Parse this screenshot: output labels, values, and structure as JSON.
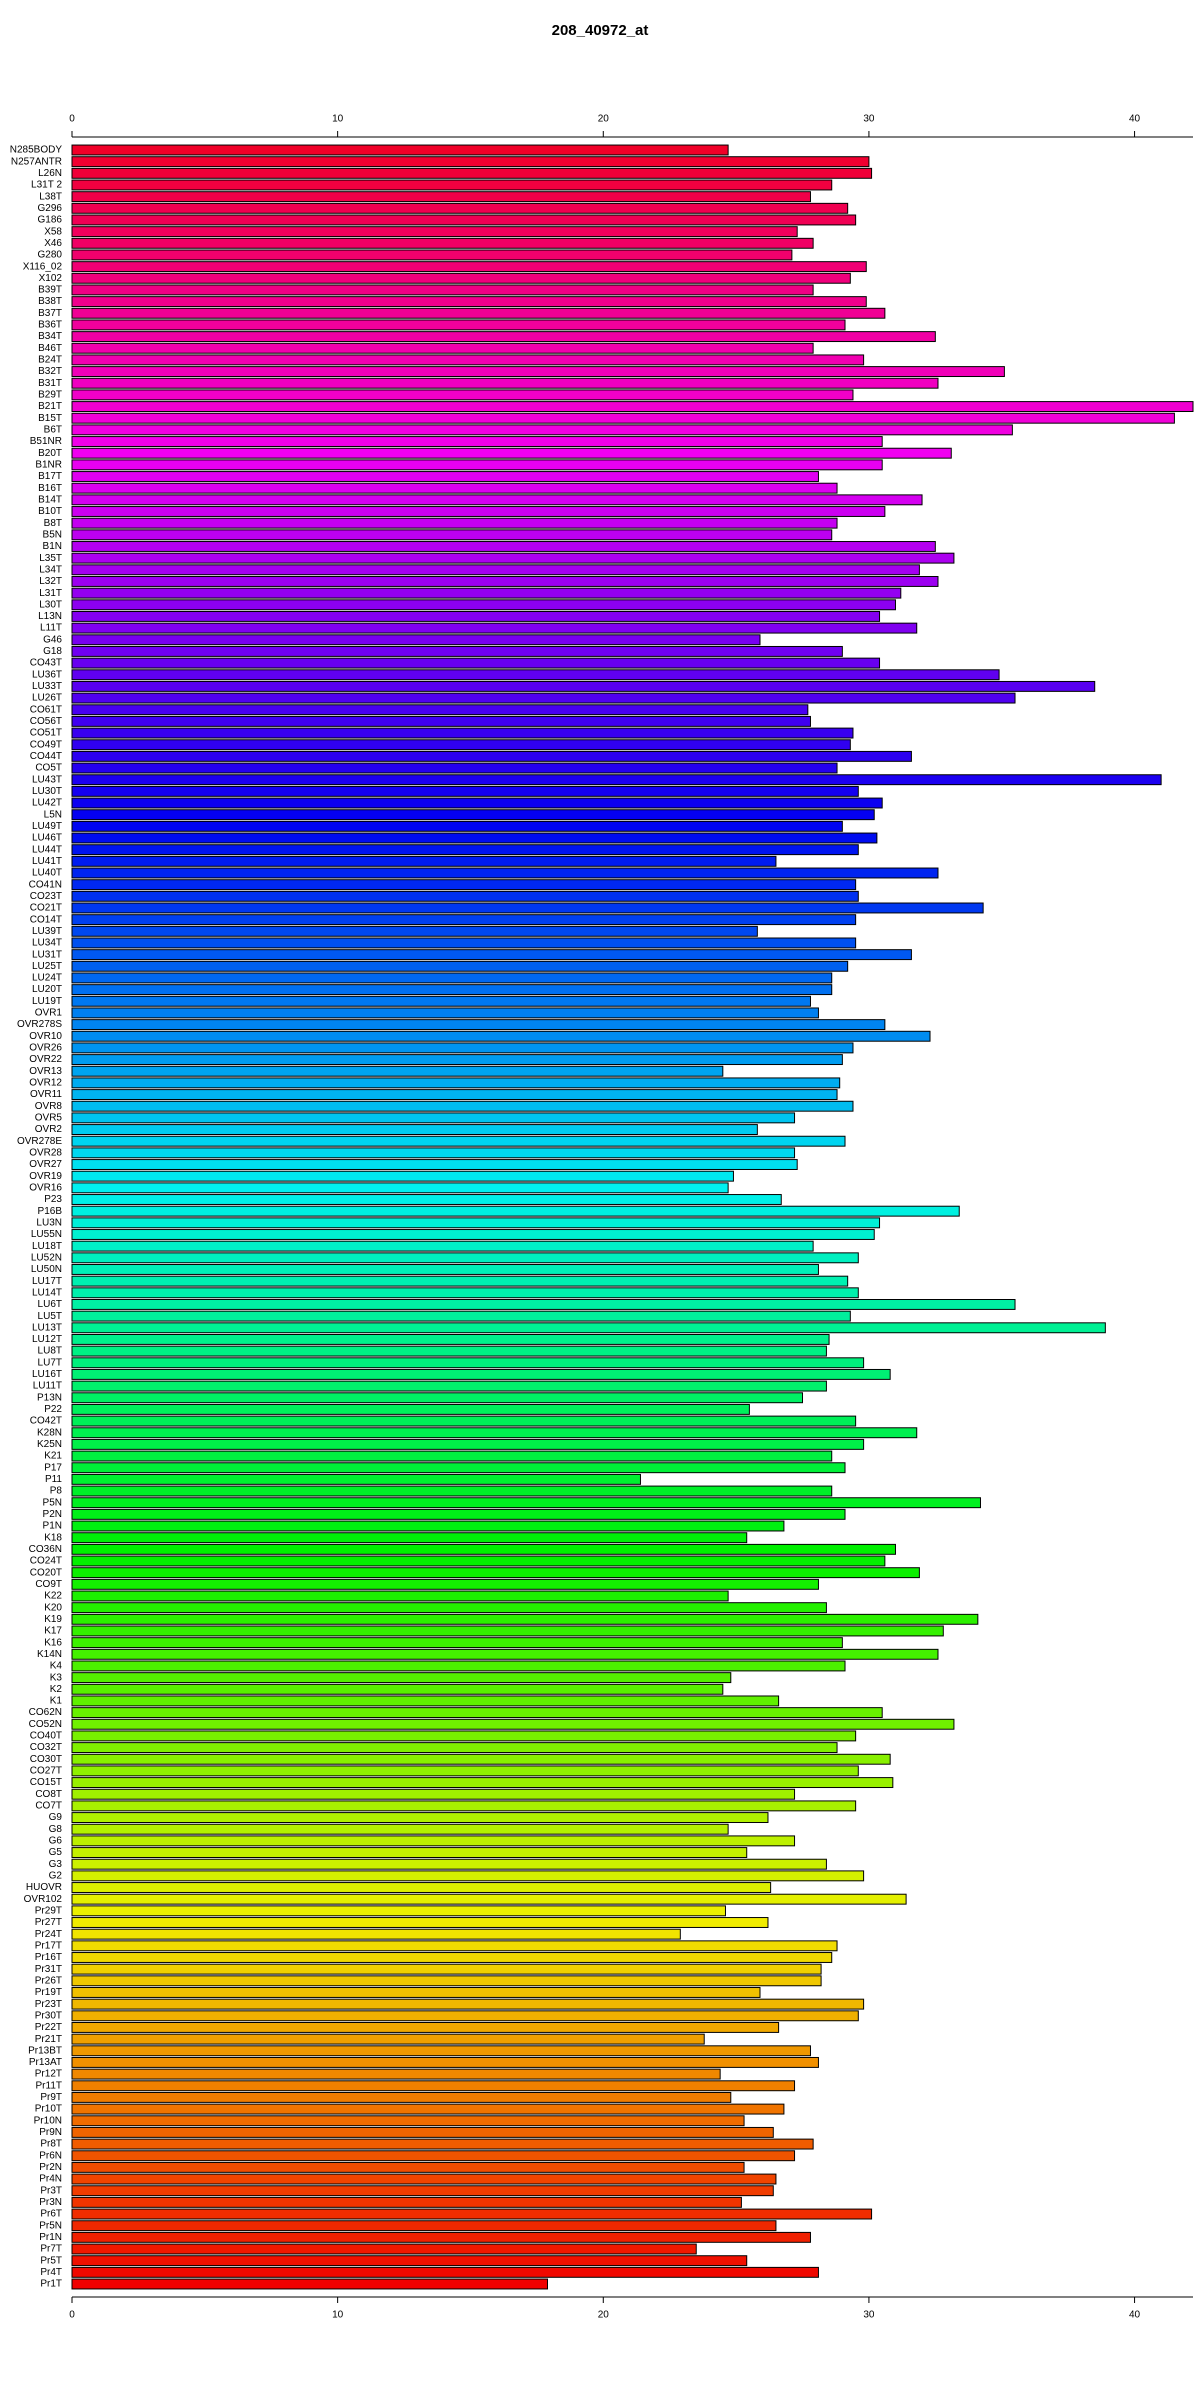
{
  "chart_data": {
    "type": "bar",
    "orientation": "horizontal",
    "title": "208_40972_at",
    "categories": [
      "N285BODY",
      "N257ANTR",
      "L26N",
      "L31T 2",
      "L38T",
      "G296",
      "G186",
      "X58",
      "X46",
      "G280",
      "X116_02",
      "X102",
      "B39T",
      "B38T",
      "B37T",
      "B36T",
      "B34T",
      "B46T",
      "B24T",
      "B32T",
      "B31T",
      "B29T",
      "B21T",
      "B15T",
      "B6T",
      "B51NR",
      "B20T",
      "B1NR",
      "B17T",
      "B16T",
      "B14T",
      "B10T",
      "B8T",
      "B5N",
      "B1N",
      "L35T",
      "L34T",
      "L32T",
      "L31T",
      "L30T",
      "L13N",
      "L11T",
      "G46",
      "G18",
      "CO43T",
      "LU36T",
      "LU33T",
      "LU26T",
      "CO61T",
      "CO56T",
      "CO51T",
      "CO49T",
      "CO44T",
      "CO5T",
      "LU43T",
      "LU30T",
      "LU42T",
      "L5N",
      "LU49T",
      "LU46T",
      "LU44T",
      "LU41T",
      "LU40T",
      "CO41N",
      "CO23T",
      "CO21T",
      "CO14T",
      "LU39T",
      "LU34T",
      "LU31T",
      "LU25T",
      "LU24T",
      "LU20T",
      "LU19T",
      "OVR1",
      "OVR278S",
      "OVR10",
      "OVR26",
      "OVR22",
      "OVR13",
      "OVR12",
      "OVR11",
      "OVR8",
      "OVR5",
      "OVR2",
      "OVR278E",
      "OVR28",
      "OVR27",
      "OVR19",
      "OVR16",
      "P23",
      "P16B",
      "LU3N",
      "LU55N",
      "LU18T",
      "LU52N",
      "LU50N",
      "LU17T",
      "LU14T",
      "LU6T",
      "LU5T",
      "LU13T",
      "LU12T",
      "LU8T",
      "LU7T",
      "LU16T",
      "LU11T",
      "P13N",
      "P22",
      "CO42T",
      "K28N",
      "K25N",
      "K21",
      "P17",
      "P11",
      "P8",
      "P5N",
      "P2N",
      "P1N",
      "K18",
      "CO36N",
      "CO24T",
      "CO20T",
      "CO9T",
      "K22",
      "K20",
      "K19",
      "K17",
      "K16",
      "K14N",
      "K4",
      "K3",
      "K2",
      "K1",
      "CO62N",
      "CO52N",
      "CO40T",
      "CO32T",
      "CO30T",
      "CO27T",
      "CO15T",
      "CO8T",
      "CO7T",
      "G9",
      "G8",
      "G6",
      "G5",
      "G3",
      "G2",
      "HUOVR",
      "OVR102",
      "Pr29T",
      "Pr27T",
      "Pr24T",
      "Pr17T",
      "Pr16T",
      "Pr31T",
      "Pr26T",
      "Pr19T",
      "Pr23T",
      "Pr30T",
      "Pr22T",
      "Pr21T",
      "Pr13BT",
      "Pr13AT",
      "Pr12T",
      "Pr11T",
      "Pr9T",
      "Pr10T",
      "Pr10N",
      "Pr9N",
      "Pr8T",
      "Pr6N",
      "Pr2N",
      "Pr4N",
      "Pr3T",
      "Pr3N",
      "Pr6T",
      "Pr5N",
      "Pr1N",
      "Pr7T",
      "Pr5T",
      "Pr4T",
      "Pr1T"
    ],
    "values": [
      24.7,
      30.0,
      30.1,
      28.6,
      27.8,
      29.2,
      29.5,
      27.3,
      27.9,
      27.1,
      29.9,
      29.3,
      27.9,
      29.9,
      30.6,
      29.1,
      32.5,
      27.9,
      29.8,
      35.1,
      32.6,
      29.4,
      42.2,
      41.5,
      35.4,
      30.5,
      33.1,
      30.5,
      28.1,
      28.8,
      32.0,
      30.6,
      28.8,
      28.6,
      32.5,
      33.2,
      31.9,
      32.6,
      31.2,
      31.0,
      30.4,
      31.8,
      25.9,
      29.0,
      30.4,
      34.9,
      38.5,
      35.5,
      27.7,
      27.8,
      29.4,
      29.3,
      31.6,
      28.8,
      41.0,
      29.6,
      30.5,
      30.2,
      29.0,
      30.3,
      29.6,
      26.5,
      32.6,
      29.5,
      29.6,
      34.3,
      29.5,
      25.8,
      29.5,
      31.6,
      29.2,
      28.6,
      28.6,
      27.8,
      28.1,
      30.6,
      32.3,
      29.4,
      29.0,
      24.5,
      28.9,
      28.8,
      29.4,
      27.2,
      25.8,
      29.1,
      27.2,
      27.3,
      24.9,
      24.7,
      26.7,
      33.4,
      30.4,
      30.2,
      27.9,
      29.6,
      28.1,
      29.2,
      29.6,
      35.5,
      29.3,
      38.9,
      28.5,
      28.4,
      29.8,
      30.8,
      28.4,
      27.5,
      25.5,
      29.5,
      31.8,
      29.8,
      28.6,
      29.1,
      21.4,
      28.6,
      34.2,
      29.1,
      26.8,
      25.4,
      31.0,
      30.6,
      31.9,
      28.1,
      24.7,
      28.4,
      34.1,
      32.8,
      29.0,
      32.6,
      29.1,
      24.8,
      24.5,
      26.6,
      30.5,
      33.2,
      29.5,
      28.8,
      30.8,
      29.6,
      30.9,
      27.2,
      29.5,
      26.2,
      24.7,
      27.2,
      25.4,
      28.4,
      29.8,
      26.3,
      31.4,
      24.6,
      26.2,
      22.9,
      28.8,
      28.6,
      28.2,
      28.2,
      25.9,
      29.8,
      29.6,
      26.6,
      23.8,
      27.8,
      28.1,
      24.4,
      27.2,
      24.8,
      26.8,
      25.3,
      26.4,
      27.9,
      27.2,
      25.3,
      26.5,
      26.4,
      25.2,
      30.1,
      26.5,
      27.8,
      23.5,
      25.4,
      28.1,
      17.9
    ],
    "colors": [
      "hsl(350,100%,47%)",
      "hsl(348,100%,47%)",
      "hsl(346,100%,47%)",
      "hsl(344,100%,47%)",
      "hsl(342,100%,47%)",
      "hsl(340,100%,47%)",
      "hsl(339,100%,47%)",
      "hsl(337,100%,47%)",
      "hsl(335,100%,47%)",
      "hsl(333,100%,47%)",
      "hsl(331,100%,47%)",
      "hsl(329,100%,47%)",
      "hsl(327,100%,47%)",
      "hsl(325,100%,47%)",
      "hsl(323,100%,47%)",
      "hsl(321,100%,47%)",
      "hsl(319,100%,47%)",
      "hsl(317,100%,47%)",
      "hsl(316,100%,47%)",
      "hsl(314,100%,47%)",
      "hsl(312,100%,47%)",
      "hsl(310,100%,47%)",
      "hsl(308,100%,47%)",
      "hsl(306,100%,47%)",
      "hsl(304,100%,47%)",
      "hsl(302,100%,47%)",
      "hsl(300,100%,47%)",
      "hsl(298,100%,47%)",
      "hsl(296,100%,47%)",
      "hsl(295,100%,47%)",
      "hsl(293,100%,47%)",
      "hsl(291,100%,47%)",
      "hsl(289,100%,47%)",
      "hsl(287,100%,47%)",
      "hsl(285,100%,47%)",
      "hsl(283,100%,47%)",
      "hsl(281,100%,47%)",
      "hsl(279,100%,47%)",
      "hsl(277,100%,47%)",
      "hsl(275,100%,47%)",
      "hsl(273,100%,47%)",
      "hsl(272,100%,47%)",
      "hsl(270,100%,47%)",
      "hsl(268,100%,47%)",
      "hsl(266,100%,47%)",
      "hsl(264,100%,47%)",
      "hsl(262,100%,47%)",
      "hsl(260,100%,47%)",
      "hsl(258,100%,47%)",
      "hsl(256,100%,47%)",
      "hsl(254,100%,47%)",
      "hsl(252,100%,47%)",
      "hsl(251,100%,47%)",
      "hsl(249,100%,47%)",
      "hsl(247,100%,47%)",
      "hsl(245,100%,47%)",
      "hsl(243,100%,47%)",
      "hsl(241,100%,47%)",
      "hsl(239,100%,47%)",
      "hsl(237,100%,47%)",
      "hsl(235,100%,47%)",
      "hsl(233,100%,47%)",
      "hsl(231,100%,47%)",
      "hsl(230,100%,47%)",
      "hsl(228,100%,47%)",
      "hsl(226,100%,47%)",
      "hsl(224,100%,47%)",
      "hsl(222,100%,47%)",
      "hsl(220,100%,47%)",
      "hsl(218,100%,47%)",
      "hsl(216,100%,47%)",
      "hsl(214,100%,47%)",
      "hsl(212,100%,47%)",
      "hsl(210,100%,47%)",
      "hsl(208,100%,47%)",
      "hsl(207,100%,47%)",
      "hsl(205,100%,47%)",
      "hsl(203,100%,47%)",
      "hsl(201,100%,47%)",
      "hsl(199,100%,47%)",
      "hsl(197,100%,47%)",
      "hsl(195,100%,47%)",
      "hsl(193,100%,47%)",
      "hsl(191,100%,47%)",
      "hsl(189,100%,47%)",
      "hsl(187,100%,47%)",
      "hsl(186,100%,47%)",
      "hsl(184,100%,47%)",
      "hsl(182,100%,47%)",
      "hsl(180,100%,47%)",
      "hsl(178,100%,47%)",
      "hsl(176,100%,47%)",
      "hsl(174,100%,47%)",
      "hsl(172,100%,47%)",
      "hsl(170,100%,47%)",
      "hsl(168,100%,47%)",
      "hsl(166,100%,47%)",
      "hsl(164,100%,47%)",
      "hsl(163,100%,47%)",
      "hsl(161,100%,47%)",
      "hsl(159,100%,47%)",
      "hsl(157,100%,47%)",
      "hsl(155,100%,47%)",
      "hsl(153,100%,47%)",
      "hsl(151,100%,47%)",
      "hsl(149,100%,47%)",
      "hsl(147,100%,47%)",
      "hsl(145,100%,47%)",
      "hsl(143,100%,47%)",
      "hsl(142,100%,47%)",
      "hsl(140,100%,47%)",
      "hsl(138,100%,47%)",
      "hsl(136,100%,47%)",
      "hsl(134,100%,47%)",
      "hsl(132,100%,47%)",
      "hsl(130,100%,47%)",
      "hsl(128,100%,47%)",
      "hsl(126,100%,47%)",
      "hsl(124,100%,47%)",
      "hsl(122,100%,47%)",
      "hsl(120,100%,47%)",
      "hsl(119,100%,47%)",
      "hsl(117,100%,47%)",
      "hsl(115,100%,47%)",
      "hsl(113,100%,47%)",
      "hsl(111,100%,47%)",
      "hsl(109,100%,47%)",
      "hsl(107,100%,47%)",
      "hsl(105,100%,47%)",
      "hsl(103,100%,47%)",
      "hsl(101,100%,47%)",
      "hsl(99,100%,47%)",
      "hsl(98,100%,47%)",
      "hsl(96,100%,47%)",
      "hsl(94,100%,47%)",
      "hsl(92,100%,47%)",
      "hsl(90,100%,47%)",
      "hsl(88,100%,47%)",
      "hsl(86,100%,47%)",
      "hsl(84,100%,47%)",
      "hsl(82,100%,47%)",
      "hsl(80,100%,47%)",
      "hsl(78,100%,47%)",
      "hsl(76,100%,47%)",
      "hsl(75,100%,47%)",
      "hsl(73,100%,47%)",
      "hsl(71,100%,47%)",
      "hsl(69,100%,47%)",
      "hsl(67,100%,47%)",
      "hsl(65,100%,47%)",
      "hsl(63,100%,47%)",
      "hsl(61,100%,47%)",
      "hsl(59,100%,47%)",
      "hsl(57,100%,47%)",
      "hsl(55,100%,47%)",
      "hsl(54,100%,47%)",
      "hsl(52,100%,47%)",
      "hsl(50,100%,47%)",
      "hsl(48,100%,47%)",
      "hsl(46,100%,47%)",
      "hsl(44,100%,47%)",
      "hsl(42,100%,47%)",
      "hsl(40,100%,47%)",
      "hsl(38,100%,47%)",
      "hsl(36,100%,47%)",
      "hsl(34,100%,47%)",
      "hsl(32,100%,47%)",
      "hsl(31,100%,47%)",
      "hsl(29,100%,47%)",
      "hsl(27,100%,47%)",
      "hsl(25,100%,47%)",
      "hsl(23,100%,47%)",
      "hsl(21,100%,47%)",
      "hsl(19,100%,47%)",
      "hsl(17,100%,47%)",
      "hsl(15,100%,47%)",
      "hsl(13,100%,47%)",
      "hsl(11,100%,47%)",
      "hsl(10,100%,47%)",
      "hsl(8,100%,47%)",
      "hsl(6,100%,47%)",
      "hsl(4,100%,47%)",
      "hsl(2,100%,47%)",
      "hsl(0,100%,47%)"
    ],
    "xlim": [
      0,
      42.2
    ],
    "xticks": [
      0,
      10,
      20,
      30,
      40
    ]
  }
}
